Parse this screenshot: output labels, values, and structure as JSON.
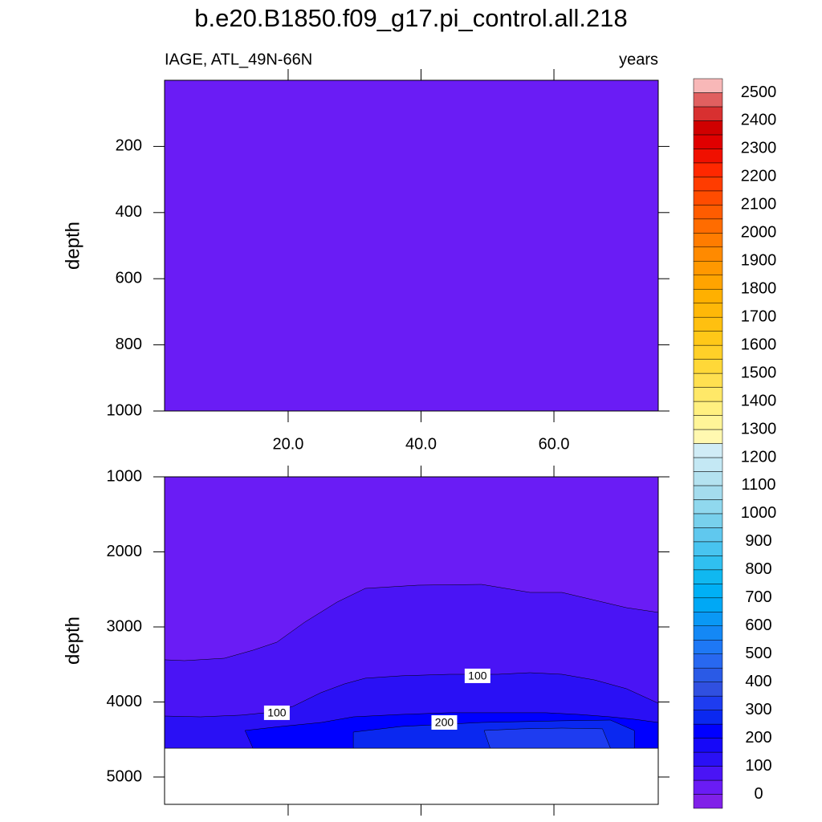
{
  "chart_data": {
    "type": "contour",
    "title": "b.e20.B1850.f09_g17.pi_control.all.218",
    "subtitle_left": "IAGE, ATL_49N-66N",
    "subtitle_right": "years",
    "xlim": [
      1.4,
      75.7
    ],
    "xticks": [
      {
        "value": 20,
        "label": "20.0"
      },
      {
        "value": 40,
        "label": "40.0"
      },
      {
        "value": 60,
        "label": "60.0"
      }
    ],
    "panels": [
      {
        "ylabel": "depth",
        "ylim": [
          0,
          1000
        ],
        "yticks": [
          200,
          400,
          600,
          800,
          1000
        ],
        "xtick_labels": true,
        "regions": [
          {
            "color": "#6a1cf5",
            "x": [
              1.4,
              75.7,
              75.7,
              1.4
            ],
            "depth": [
              0,
              0,
              1000,
              1000
            ]
          }
        ]
      },
      {
        "ylabel": "depth",
        "ylim": [
          1000,
          5364
        ],
        "yticks": [
          1000,
          2000,
          3000,
          4000,
          5000
        ],
        "xtick_labels": false,
        "regions": [
          {
            "color": "#6a1cf5",
            "x": [
              1.4,
              75.7,
              75.7,
              1.4
            ],
            "depth": [
              1000,
              1000,
              4615,
              4615
            ]
          },
          {
            "color": "#4a14f5",
            "x": [
              1.4,
              4.4,
              10.4,
              14.7,
              18.3,
              22.5,
              27.4,
              31.6,
              39.5,
              49.1,
              56.4,
              61.2,
              70.9,
              75.7,
              75.7,
              1.4
            ],
            "depth": [
              3438,
              3449,
              3417,
              3310,
              3203,
              2936,
              2668,
              2487,
              2444,
              2433,
              2540,
              2540,
              2743,
              2807,
              4615,
              4615
            ]
          },
          {
            "color": "#2a10f5",
            "level": 100,
            "label_x": [
              18.3,
              48.5
            ],
            "label_depth": [
              4144,
              3652
            ],
            "x": [
              1.4,
              6.8,
              12.9,
              17.7,
              20.7,
              24.9,
              28.5,
              31.6,
              37.0,
              44.3,
              51.6,
              56.4,
              61.2,
              66.1,
              70.9,
              75.7,
              75.7,
              1.4
            ],
            "depth": [
              4187,
              4198,
              4176,
              4134,
              4059,
              3877,
              3759,
              3684,
              3652,
              3631,
              3631,
              3610,
              3631,
              3706,
              3823,
              4016,
              4615,
              4615
            ]
          },
          {
            "color": "#0000ff",
            "level": 200,
            "label_x": [
              43.5
            ],
            "label_depth": [
              4273
            ],
            "x": [
              13.5,
              18.9,
              25.0,
              29.8,
              37.0,
              44.3,
              51.6,
              58.8,
              63.7,
              68.5,
              72.1,
              75.7,
              75.7,
              14.7
            ],
            "depth": [
              4380,
              4326,
              4273,
              4198,
              4166,
              4144,
              4144,
              4144,
              4166,
              4198,
              4230,
              4273,
              4615,
              4615
            ]
          },
          {
            "color": "#0a28f0",
            "x": [
              29.8,
              29.8,
              37.0,
              49.1,
              61.2,
              68.5,
              72.1,
              72.1
            ],
            "depth": [
              4615,
              4401,
              4326,
              4273,
              4251,
              4241,
              4380,
              4615
            ]
          },
          {
            "color": "#1e3cf0",
            "x": [
              50.4,
              49.5,
              55.2,
              61.2,
              67.3,
              68.5
            ],
            "depth": [
              4615,
              4380,
              4358,
              4348,
              4358,
              4615
            ]
          }
        ]
      }
    ],
    "colorbar": {
      "levels": [
        0,
        50,
        100,
        150,
        200,
        250,
        300,
        350,
        400,
        450,
        500,
        550,
        600,
        650,
        700,
        750,
        800,
        850,
        900,
        950,
        1000,
        1050,
        1100,
        1150,
        1200,
        1250,
        1300,
        1350,
        1400,
        1450,
        1500,
        1550,
        1600,
        1650,
        1700,
        1750,
        1800,
        1850,
        1900,
        1950,
        2000,
        2050,
        2100,
        2150,
        2200,
        2250,
        2300,
        2350,
        2400,
        2450,
        2500
      ],
      "ticks": [
        0,
        100,
        200,
        300,
        400,
        500,
        600,
        700,
        800,
        900,
        1000,
        1100,
        1200,
        1300,
        1400,
        1500,
        1600,
        1700,
        1800,
        1900,
        2000,
        2100,
        2200,
        2300,
        2400,
        2500
      ],
      "colors": [
        "#8020e8",
        "#6a1cf5",
        "#4a14f5",
        "#2a10f5",
        "#1608f8",
        "#0000ff",
        "#0a28f0",
        "#1e3cf0",
        "#3050e0",
        "#2a5ae6",
        "#2868f0",
        "#1e78f5",
        "#1488f5",
        "#0a98f5",
        "#00a8f5",
        "#00b0f5",
        "#10b8f0",
        "#30c0f0",
        "#48c4f0",
        "#60c8ee",
        "#78d0ec",
        "#90d8ee",
        "#a4dcee",
        "#b4e2f0",
        "#c4e8f4",
        "#d0ecf6",
        "#fff8b0",
        "#fff598",
        "#fff080",
        "#ffe868",
        "#ffe050",
        "#ffd838",
        "#ffd028",
        "#ffc818",
        "#ffc010",
        "#ffb808",
        "#ffb000",
        "#ffa400",
        "#ff9800",
        "#ff8a00",
        "#ff7c00",
        "#ff6c00",
        "#ff5c00",
        "#ff4c00",
        "#ff3c00",
        "#ff2800",
        "#f01000",
        "#e00000",
        "#d00000",
        "#d83030",
        "#e06060",
        "#f8b8b8"
      ]
    }
  }
}
